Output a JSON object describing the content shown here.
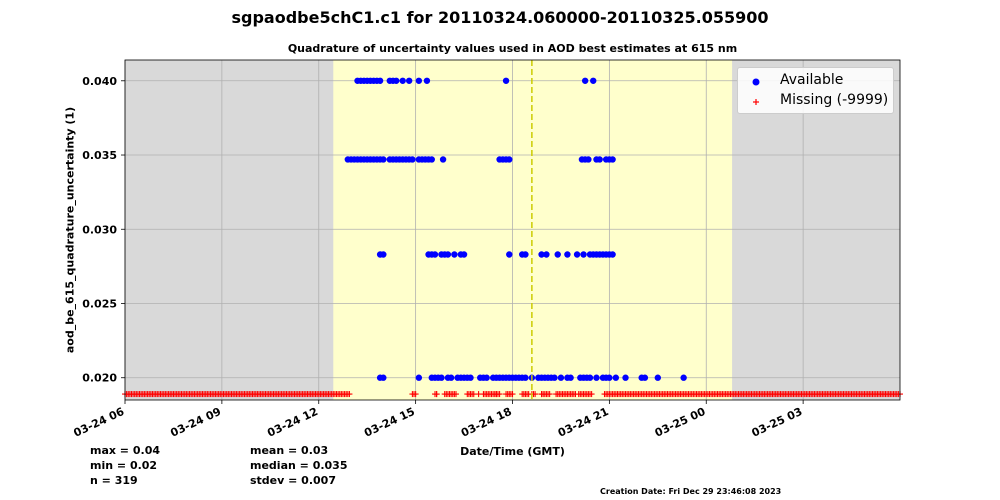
{
  "title": "sgpaodbe5chC1.c1 for 20110324.060000-20110325.055900",
  "chart_data": {
    "type": "scatter",
    "title": "Quadrature of uncertainty values used in AOD best estimates at 615 nm",
    "xlabel": "Date/Time (GMT)",
    "ylabel": "aod_be_615_quadrature_uncertainty (1)",
    "x_unit": "hours since 2011-03-24 00:00 GMT",
    "xlim": [
      6,
      30
    ],
    "ylim": [
      0.0185,
      0.0414
    ],
    "grid": true,
    "x_ticks": [
      {
        "value": 6,
        "label": "03-24 06"
      },
      {
        "value": 9,
        "label": "03-24 09"
      },
      {
        "value": 12,
        "label": "03-24 12"
      },
      {
        "value": 15,
        "label": "03-24 15"
      },
      {
        "value": 18,
        "label": "03-24 18"
      },
      {
        "value": 21,
        "label": "03-24 21"
      },
      {
        "value": 24,
        "label": "03-25 00"
      },
      {
        "value": 27,
        "label": "03-25 03"
      }
    ],
    "y_ticks": [
      {
        "value": 0.02,
        "label": "0.020"
      },
      {
        "value": 0.025,
        "label": "0.025"
      },
      {
        "value": 0.03,
        "label": "0.030"
      },
      {
        "value": 0.035,
        "label": "0.035"
      },
      {
        "value": 0.04,
        "label": "0.040"
      }
    ],
    "daylight_span": [
      12.45,
      24.8
    ],
    "vline_x": 18.6,
    "colors": {
      "night": "#d9d9d9",
      "day": "#ffffcc",
      "available": "#0000ff",
      "missing": "#ff0000",
      "vline": "#cccc00",
      "grid": "#b0b0b0"
    },
    "legend": {
      "position": "top-right",
      "entries": [
        "Available",
        "Missing (-9999)"
      ]
    },
    "series": [
      {
        "name": "Available",
        "groups": [
          {
            "y": 0.04,
            "x": [
              13.2,
              13.3,
              13.4,
              13.5,
              13.6,
              13.7,
              13.8,
              13.9,
              14.2,
              14.3,
              14.4,
              14.6,
              14.8,
              15.1,
              15.35,
              17.8,
              20.25,
              20.5
            ]
          },
          {
            "y": 0.0347,
            "x": [
              12.9,
              13.0,
              13.1,
              13.2,
              13.3,
              13.4,
              13.5,
              13.6,
              13.7,
              13.8,
              13.9,
              14.0,
              14.2,
              14.3,
              14.4,
              14.5,
              14.6,
              14.7,
              14.8,
              14.9,
              15.1,
              15.2,
              15.3,
              15.4,
              15.5,
              15.85,
              17.6,
              17.7,
              17.8,
              17.9,
              20.15,
              20.25,
              20.35,
              20.6,
              20.7,
              20.9,
              21.0,
              21.1
            ]
          },
          {
            "y": 0.0283,
            "x": [
              13.9,
              14.0,
              15.4,
              15.5,
              15.6,
              15.8,
              15.9,
              16.0,
              16.2,
              16.4,
              16.5,
              17.9,
              18.3,
              18.4,
              18.9,
              19.05,
              19.4,
              19.7,
              20.0,
              20.2,
              20.4,
              20.5,
              20.6,
              20.7,
              20.8,
              20.9,
              21.0,
              21.1
            ]
          },
          {
            "y": 0.02,
            "x": [
              13.9,
              14.0,
              15.1,
              15.5,
              15.6,
              15.7,
              15.8,
              16.0,
              16.1,
              16.3,
              16.4,
              16.5,
              16.6,
              16.7,
              17.0,
              17.1,
              17.2,
              17.4,
              17.5,
              17.6,
              17.7,
              17.8,
              17.9,
              18.0,
              18.1,
              18.2,
              18.3,
              18.4,
              18.6,
              18.8,
              18.9,
              19.0,
              19.1,
              19.2,
              19.3,
              19.5,
              19.7,
              19.8,
              20.1,
              20.2,
              20.3,
              20.4,
              20.6,
              20.8,
              20.9,
              21.0,
              21.2,
              21.5,
              22.0,
              22.1,
              22.5,
              23.3
            ]
          }
        ]
      },
      {
        "name": "Missing (-9999)",
        "y": 0.0189,
        "x_ranges": [
          [
            6.0,
            12.95
          ],
          [
            14.9,
            15.0
          ],
          [
            15.6,
            15.65
          ],
          [
            15.9,
            16.25
          ],
          [
            16.6,
            16.8
          ],
          [
            17.1,
            17.6
          ],
          [
            17.8,
            18.0
          ],
          [
            18.3,
            18.5
          ],
          [
            18.6,
            18.7
          ],
          [
            18.9,
            19.15
          ],
          [
            19.35,
            19.95
          ],
          [
            20.05,
            20.45
          ],
          [
            20.85,
            30.0
          ]
        ],
        "x": [
          15.65,
          16.95,
          17.5,
          18.9
        ]
      }
    ]
  },
  "stats": {
    "max": "max = 0.04",
    "min": "min = 0.02",
    "n": "n = 319",
    "mean": "mean = 0.03",
    "median": "median = 0.035",
    "stdev": "stdev = 0.007"
  },
  "creation": "Creation Date: Fri Dec 29 23:46:08 2023"
}
